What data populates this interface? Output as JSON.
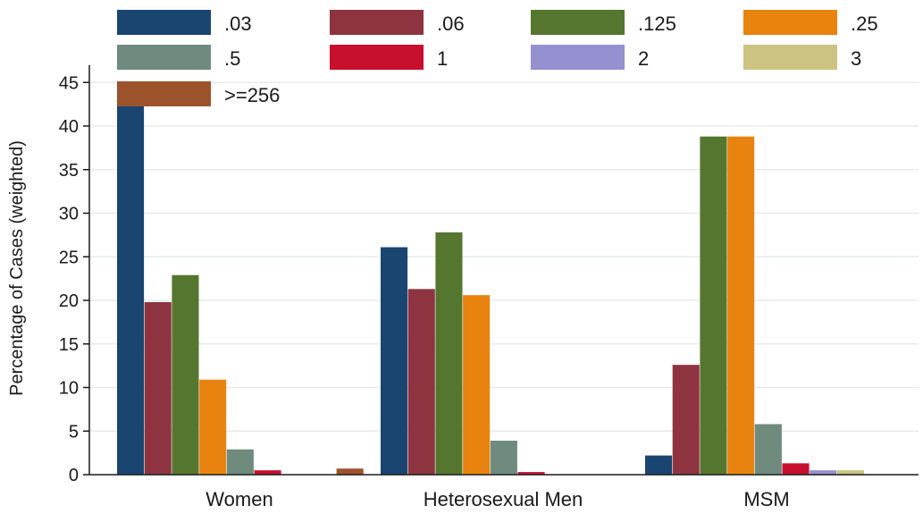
{
  "chart_data": {
    "type": "bar",
    "ylabel": "Percentage of Cases (weighted)",
    "xlabel": "",
    "ylim": [
      0,
      47
    ],
    "yticks": [
      0,
      5,
      10,
      15,
      20,
      25,
      30,
      35,
      40,
      45
    ],
    "grid": true,
    "legend_position": "top",
    "categories": [
      "Women",
      "Heterosexual Men",
      "MSM"
    ],
    "series": [
      {
        "name": ".03",
        "color": "#1a4571",
        "values": [
          42.4,
          26.1,
          2.2
        ]
      },
      {
        "name": ".06",
        "color": "#8e3440",
        "values": [
          19.8,
          21.3,
          12.6
        ]
      },
      {
        "name": ".125",
        "color": "#55762f",
        "values": [
          22.9,
          27.8,
          38.8
        ]
      },
      {
        "name": ".25",
        "color": "#e8830f",
        "values": [
          10.9,
          20.6,
          38.8
        ]
      },
      {
        "name": ".5",
        "color": "#6f8b7e",
        "values": [
          2.9,
          3.9,
          5.8
        ]
      },
      {
        "name": "1",
        "color": "#c8102e",
        "values": [
          0.5,
          0.3,
          1.3
        ]
      },
      {
        "name": "2",
        "color": "#9590cf",
        "values": [
          0,
          0,
          0.5
        ]
      },
      {
        "name": "3",
        "color": "#cdc380",
        "values": [
          0,
          0,
          0.5
        ]
      },
      {
        "name": ">=256",
        "color": "#9c532c",
        "values": [
          0.7,
          0,
          0
        ]
      }
    ]
  }
}
